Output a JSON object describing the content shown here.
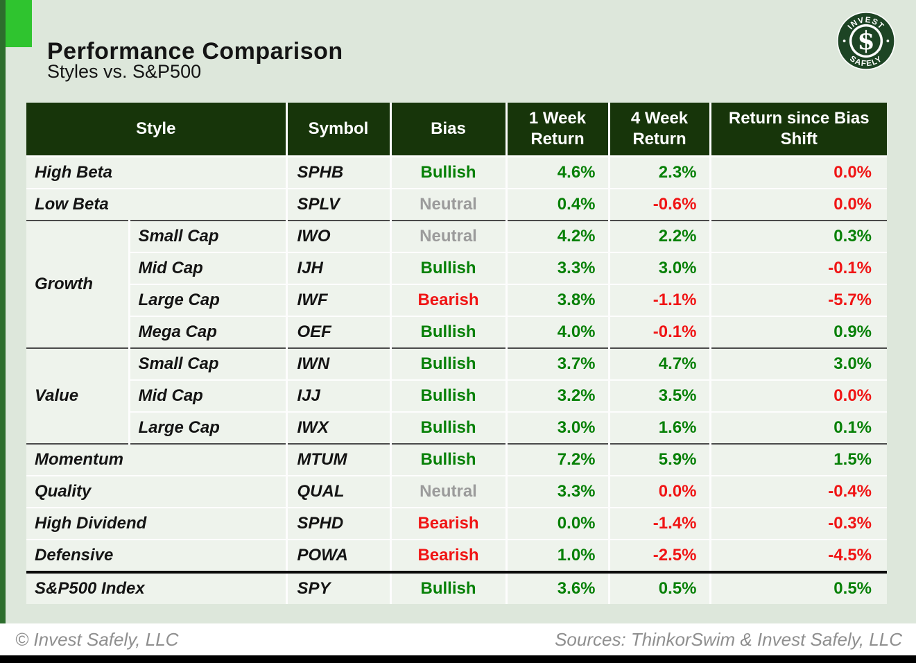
{
  "page": {
    "title": "Performance Comparison",
    "subtitle": "Styles vs. S&P500",
    "footer_left": "© Invest Safely, LLC",
    "footer_right": "Sources: ThinkorSwim & Invest Safely, LLC"
  },
  "logo": {
    "top_text": "INVEST",
    "bottom_text": "SAFELY",
    "symbol": "$",
    "trademark": "®"
  },
  "colors": {
    "accent_square": "#2fc42f",
    "left_stripe": "#2d6e2d",
    "header_bg": "#17350a",
    "row_bg": "#eef3ec",
    "page_bg": "#dde7db",
    "positive": "#078007",
    "negative": "#f01414",
    "neutral": "#9b9b9b",
    "logo_green": "#1d4424"
  },
  "table": {
    "headers": [
      "Style",
      "Symbol",
      "Bias",
      "1 Week Return",
      "4 Week Return",
      "Return since Bias Shift"
    ],
    "rows": [
      {
        "sep": "none",
        "style": "High Beta",
        "span": 2,
        "symbol": "SPHB",
        "bias": {
          "text": "Bullish",
          "color": "green"
        },
        "week1": {
          "text": "4.6%",
          "color": "green"
        },
        "week4": {
          "text": "2.3%",
          "color": "green"
        },
        "since": {
          "text": "0.0%",
          "color": "red"
        }
      },
      {
        "sep": "white",
        "style": "Low Beta",
        "span": 2,
        "symbol": "SPLV",
        "bias": {
          "text": "Neutral",
          "color": "gray"
        },
        "week1": {
          "text": "0.4%",
          "color": "green"
        },
        "week4": {
          "text": "-0.6%",
          "color": "red"
        },
        "since": {
          "text": "0.0%",
          "color": "red"
        }
      },
      {
        "sep": "dark",
        "group": {
          "label": "Growth",
          "rows": 4
        },
        "style": "Small Cap",
        "span": 1,
        "symbol": "IWO",
        "bias": {
          "text": "Neutral",
          "color": "gray"
        },
        "week1": {
          "text": "4.2%",
          "color": "green"
        },
        "week4": {
          "text": "2.2%",
          "color": "green"
        },
        "since": {
          "text": "0.3%",
          "color": "green"
        }
      },
      {
        "sep": "white",
        "style": "Mid Cap",
        "span": 1,
        "symbol": "IJH",
        "bias": {
          "text": "Bullish",
          "color": "green"
        },
        "week1": {
          "text": "3.3%",
          "color": "green"
        },
        "week4": {
          "text": "3.0%",
          "color": "green"
        },
        "since": {
          "text": "-0.1%",
          "color": "red"
        }
      },
      {
        "sep": "white",
        "style": "Large Cap",
        "span": 1,
        "symbol": "IWF",
        "bias": {
          "text": "Bearish",
          "color": "red"
        },
        "week1": {
          "text": "3.8%",
          "color": "green"
        },
        "week4": {
          "text": "-1.1%",
          "color": "red"
        },
        "since": {
          "text": "-5.7%",
          "color": "red"
        }
      },
      {
        "sep": "white",
        "style": "Mega Cap",
        "span": 1,
        "symbol": "OEF",
        "bias": {
          "text": "Bullish",
          "color": "green"
        },
        "week1": {
          "text": "4.0%",
          "color": "green"
        },
        "week4": {
          "text": "-0.1%",
          "color": "red"
        },
        "since": {
          "text": "0.9%",
          "color": "green"
        }
      },
      {
        "sep": "dark",
        "group": {
          "label": "Value",
          "rows": 3
        },
        "style": "Small Cap",
        "span": 1,
        "symbol": "IWN",
        "bias": {
          "text": "Bullish",
          "color": "green"
        },
        "week1": {
          "text": "3.7%",
          "color": "green"
        },
        "week4": {
          "text": "4.7%",
          "color": "green"
        },
        "since": {
          "text": "3.0%",
          "color": "green"
        }
      },
      {
        "sep": "white",
        "style": "Mid Cap",
        "span": 1,
        "symbol": "IJJ",
        "bias": {
          "text": "Bullish",
          "color": "green"
        },
        "week1": {
          "text": "3.2%",
          "color": "green"
        },
        "week4": {
          "text": "3.5%",
          "color": "green"
        },
        "since": {
          "text": "0.0%",
          "color": "red"
        }
      },
      {
        "sep": "white",
        "style": "Large Cap",
        "span": 1,
        "symbol": "IWX",
        "bias": {
          "text": "Bullish",
          "color": "green"
        },
        "week1": {
          "text": "3.0%",
          "color": "green"
        },
        "week4": {
          "text": "1.6%",
          "color": "green"
        },
        "since": {
          "text": "0.1%",
          "color": "green"
        }
      },
      {
        "sep": "dark",
        "style": "Momentum",
        "span": 2,
        "symbol": "MTUM",
        "bias": {
          "text": "Bullish",
          "color": "green"
        },
        "week1": {
          "text": "7.2%",
          "color": "green"
        },
        "week4": {
          "text": "5.9%",
          "color": "green"
        },
        "since": {
          "text": "1.5%",
          "color": "green"
        }
      },
      {
        "sep": "white",
        "style": "Quality",
        "span": 2,
        "symbol": "QUAL",
        "bias": {
          "text": "Neutral",
          "color": "gray"
        },
        "week1": {
          "text": "3.3%",
          "color": "green"
        },
        "week4": {
          "text": "0.0%",
          "color": "red"
        },
        "since": {
          "text": "-0.4%",
          "color": "red"
        }
      },
      {
        "sep": "white",
        "style": "High Dividend",
        "span": 2,
        "symbol": "SPHD",
        "bias": {
          "text": "Bearish",
          "color": "red"
        },
        "week1": {
          "text": "0.0%",
          "color": "green"
        },
        "week4": {
          "text": "-1.4%",
          "color": "red"
        },
        "since": {
          "text": "-0.3%",
          "color": "red"
        }
      },
      {
        "sep": "white",
        "style": "Defensive",
        "span": 2,
        "symbol": "POWA",
        "bias": {
          "text": "Bearish",
          "color": "red"
        },
        "week1": {
          "text": "1.0%",
          "color": "green"
        },
        "week4": {
          "text": "-2.5%",
          "color": "red"
        },
        "since": {
          "text": "-4.5%",
          "color": "red"
        }
      },
      {
        "sep": "black",
        "style": "S&P500 Index",
        "span": 2,
        "symbol": "SPY",
        "bias": {
          "text": "Bullish",
          "color": "green"
        },
        "week1": {
          "text": "3.6%",
          "color": "green"
        },
        "week4": {
          "text": "0.5%",
          "color": "green"
        },
        "since": {
          "text": "0.5%",
          "color": "green"
        }
      }
    ]
  },
  "chart_data": {
    "type": "table",
    "title": "Performance Comparison",
    "subtitle": "Styles vs. S&P500",
    "columns": [
      "Style",
      "Symbol",
      "Bias",
      "1 Week Return (%)",
      "4 Week Return (%)",
      "Return since Bias Shift (%)"
    ],
    "rows": [
      [
        "High Beta",
        "SPHB",
        "Bullish",
        4.6,
        2.3,
        0.0
      ],
      [
        "Low Beta",
        "SPLV",
        "Neutral",
        0.4,
        -0.6,
        0.0
      ],
      [
        "Growth / Small Cap",
        "IWO",
        "Neutral",
        4.2,
        2.2,
        0.3
      ],
      [
        "Growth / Mid Cap",
        "IJH",
        "Bullish",
        3.3,
        3.0,
        -0.1
      ],
      [
        "Growth / Large Cap",
        "IWF",
        "Bearish",
        3.8,
        -1.1,
        -5.7
      ],
      [
        "Growth / Mega Cap",
        "OEF",
        "Bullish",
        4.0,
        -0.1,
        0.9
      ],
      [
        "Value / Small Cap",
        "IWN",
        "Bullish",
        3.7,
        4.7,
        3.0
      ],
      [
        "Value / Mid Cap",
        "IJJ",
        "Bullish",
        3.2,
        3.5,
        0.0
      ],
      [
        "Value / Large Cap",
        "IWX",
        "Bullish",
        3.0,
        1.6,
        0.1
      ],
      [
        "Momentum",
        "MTUM",
        "Bullish",
        7.2,
        5.9,
        1.5
      ],
      [
        "Quality",
        "QUAL",
        "Neutral",
        3.3,
        0.0,
        -0.4
      ],
      [
        "High Dividend",
        "SPHD",
        "Bearish",
        0.0,
        -1.4,
        -0.3
      ],
      [
        "Defensive",
        "POWA",
        "Bearish",
        1.0,
        -2.5,
        -4.5
      ],
      [
        "S&P500 Index",
        "SPY",
        "Bullish",
        3.6,
        0.5,
        0.5
      ]
    ]
  }
}
